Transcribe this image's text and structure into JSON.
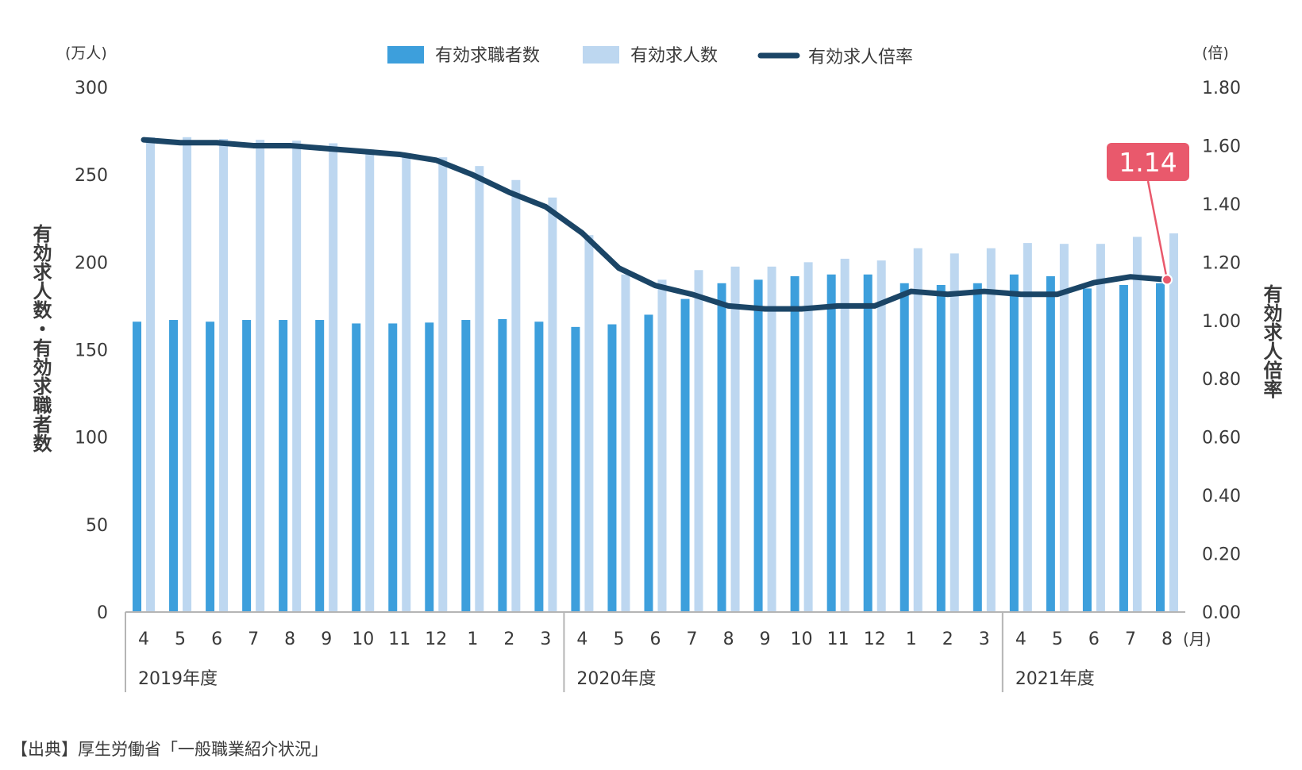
{
  "chart_data": {
    "type": "bar",
    "legend_position": "top-center",
    "grid": false,
    "categories": [
      "4",
      "5",
      "6",
      "7",
      "8",
      "9",
      "10",
      "11",
      "12",
      "1",
      "2",
      "3",
      "4",
      "5",
      "6",
      "7",
      "8",
      "9",
      "10",
      "11",
      "12",
      "1",
      "2",
      "3",
      "4",
      "5",
      "6",
      "7",
      "8"
    ],
    "fiscal_year_groups": [
      {
        "label": "2019年度",
        "start": 0,
        "count": 12
      },
      {
        "label": "2020年度",
        "start": 12,
        "count": 12
      },
      {
        "label": "2021年度",
        "start": 24,
        "count": 5
      }
    ],
    "x_unit": "(月)",
    "y_left": {
      "unit": "(万人)",
      "label": "有効求人数・有効求職者数",
      "range": [
        0,
        300
      ],
      "ticks": [
        "0",
        "50",
        "100",
        "150",
        "200",
        "250",
        "300"
      ]
    },
    "y_right": {
      "unit": "(倍)",
      "label": "有効求人倍率",
      "range": [
        0,
        1.8
      ],
      "ticks": [
        "0.00",
        "0.20",
        "0.40",
        "0.60",
        "0.80",
        "1.00",
        "1.20",
        "1.40",
        "1.60",
        "1.80"
      ]
    },
    "series": [
      {
        "name": "有効求職者数",
        "type": "bar",
        "axis": "left",
        "color": "#3d9fdc",
        "values": [
          166,
          167,
          166,
          167,
          167,
          167,
          165,
          165,
          165.5,
          167,
          167.5,
          166,
          163,
          164.5,
          170,
          179,
          188,
          190,
          192,
          193,
          193,
          188,
          187,
          188,
          193,
          192,
          185,
          187,
          188
        ]
      },
      {
        "name": "有効求人数",
        "type": "bar",
        "axis": "left",
        "color": "#bdd7f0",
        "values": [
          271.5,
          271.5,
          270.5,
          270,
          269.5,
          268,
          264.5,
          261,
          260,
          255,
          247,
          237,
          215.5,
          193,
          190,
          195.5,
          197.5,
          197.5,
          200,
          202,
          201,
          208,
          205,
          208,
          211,
          210.5,
          210.5,
          214.5,
          216.5
        ]
      },
      {
        "name": "有効求人倍率",
        "type": "line",
        "axis": "right",
        "color": "#1b4566",
        "values": [
          1.62,
          1.61,
          1.61,
          1.6,
          1.6,
          1.59,
          1.58,
          1.57,
          1.55,
          1.5,
          1.44,
          1.39,
          1.3,
          1.18,
          1.12,
          1.09,
          1.05,
          1.04,
          1.04,
          1.05,
          1.05,
          1.1,
          1.09,
          1.1,
          1.09,
          1.09,
          1.13,
          1.15,
          1.14
        ]
      }
    ],
    "callout": {
      "label": "1.14",
      "index": 28,
      "color": "#e9596c"
    }
  },
  "source": "【出典】厚生労働省「一般職業紹介状況」"
}
